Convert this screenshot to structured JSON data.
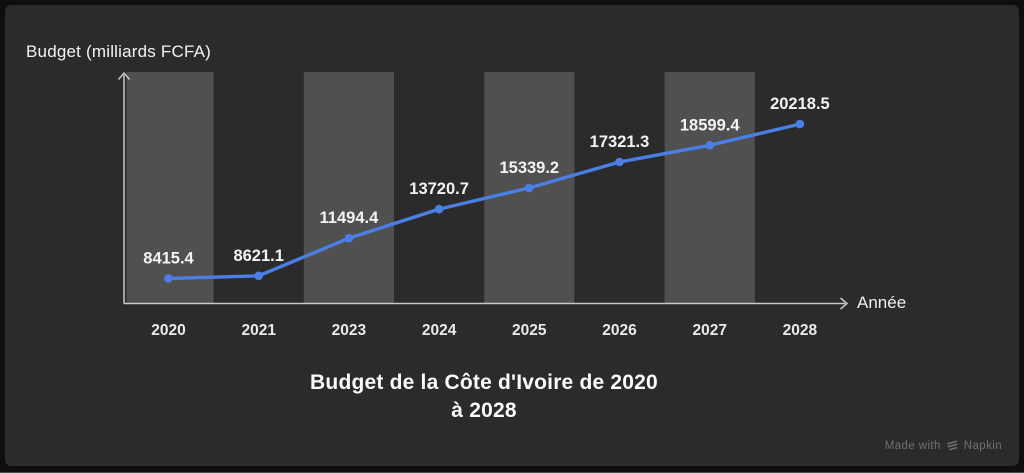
{
  "page": {
    "background": "#0e0e0e",
    "card_background": "#2b2b2b"
  },
  "chart_data": {
    "type": "line",
    "title": "Budget de la Côte d'Ivoire de 2020 à 2028",
    "title_lines": [
      "Budget de la Côte d'Ivoire de 2020",
      "à 2028"
    ],
    "xlabel": "Année",
    "ylabel": "Budget (milliards FCFA)",
    "categories": [
      "2020",
      "2021",
      "2023",
      "2024",
      "2025",
      "2026",
      "2027",
      "2028"
    ],
    "values": [
      8415.4,
      8621.1,
      11494.4,
      13720.7,
      15339.2,
      17321.3,
      18599.4,
      20218.5
    ],
    "value_labels": [
      "8415.4",
      "8621.1",
      "11494.4",
      "13720.7",
      "15339.2",
      "17321.3",
      "18599.4",
      "20218.5"
    ],
    "ylim": [
      6500,
      24200
    ],
    "grid": false,
    "legend": "none",
    "banded_columns": [
      0,
      2,
      4,
      6
    ],
    "colors": {
      "line": "#4b7fe6",
      "point": "#4b7fe6",
      "band": "#505050",
      "axis": "#c9c9c9",
      "value_label": "#f3f3f3",
      "tick_label": "#eaeaea"
    }
  },
  "watermark": {
    "prefix": "Made with",
    "brand": "Napkin"
  }
}
